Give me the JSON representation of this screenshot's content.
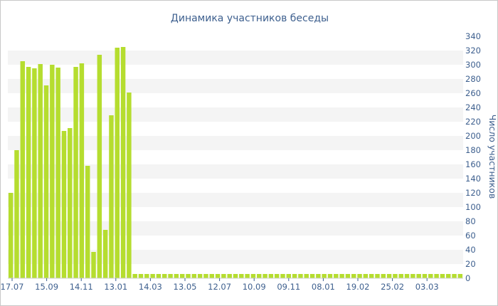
{
  "chart_data": {
    "type": "bar",
    "title": "Динамика участников беседы",
    "xlabel": "",
    "ylabel": "Число участников",
    "ylim": [
      0,
      340
    ],
    "y_ticks": [
      0,
      20,
      40,
      60,
      80,
      100,
      120,
      140,
      160,
      180,
      200,
      220,
      240,
      260,
      280,
      300,
      320,
      340
    ],
    "y_axis_side": "right",
    "grid": "horizontal alternating bands",
    "legend": "none",
    "x_tick_labels": [
      "17.07",
      "15.09",
      "14.11",
      "13.01",
      "14.03",
      "13.05",
      "12.07",
      "10.09",
      "09.11",
      "08.01",
      "19.02",
      "25.02",
      "03.03"
    ],
    "values": [
      120,
      180,
      305,
      297,
      295,
      301,
      271,
      300,
      296,
      207,
      211,
      297,
      302,
      158,
      37,
      314,
      68,
      229,
      324,
      325,
      261,
      6,
      6,
      6,
      6,
      6,
      6,
      6,
      6,
      6,
      6,
      6,
      6,
      6,
      6,
      6,
      6,
      6,
      6,
      6,
      6,
      6,
      6,
      6,
      6,
      6,
      6,
      6,
      6,
      6,
      6,
      6,
      6,
      6,
      6,
      6,
      6,
      6,
      6,
      6,
      6,
      6,
      6,
      6,
      6,
      6,
      6,
      6,
      6,
      6,
      6,
      6,
      6,
      6,
      6,
      6,
      6
    ],
    "bar_color": "#b5dd2f",
    "band_color": "#f4f4f4",
    "text_color": "#3d5f8e"
  }
}
